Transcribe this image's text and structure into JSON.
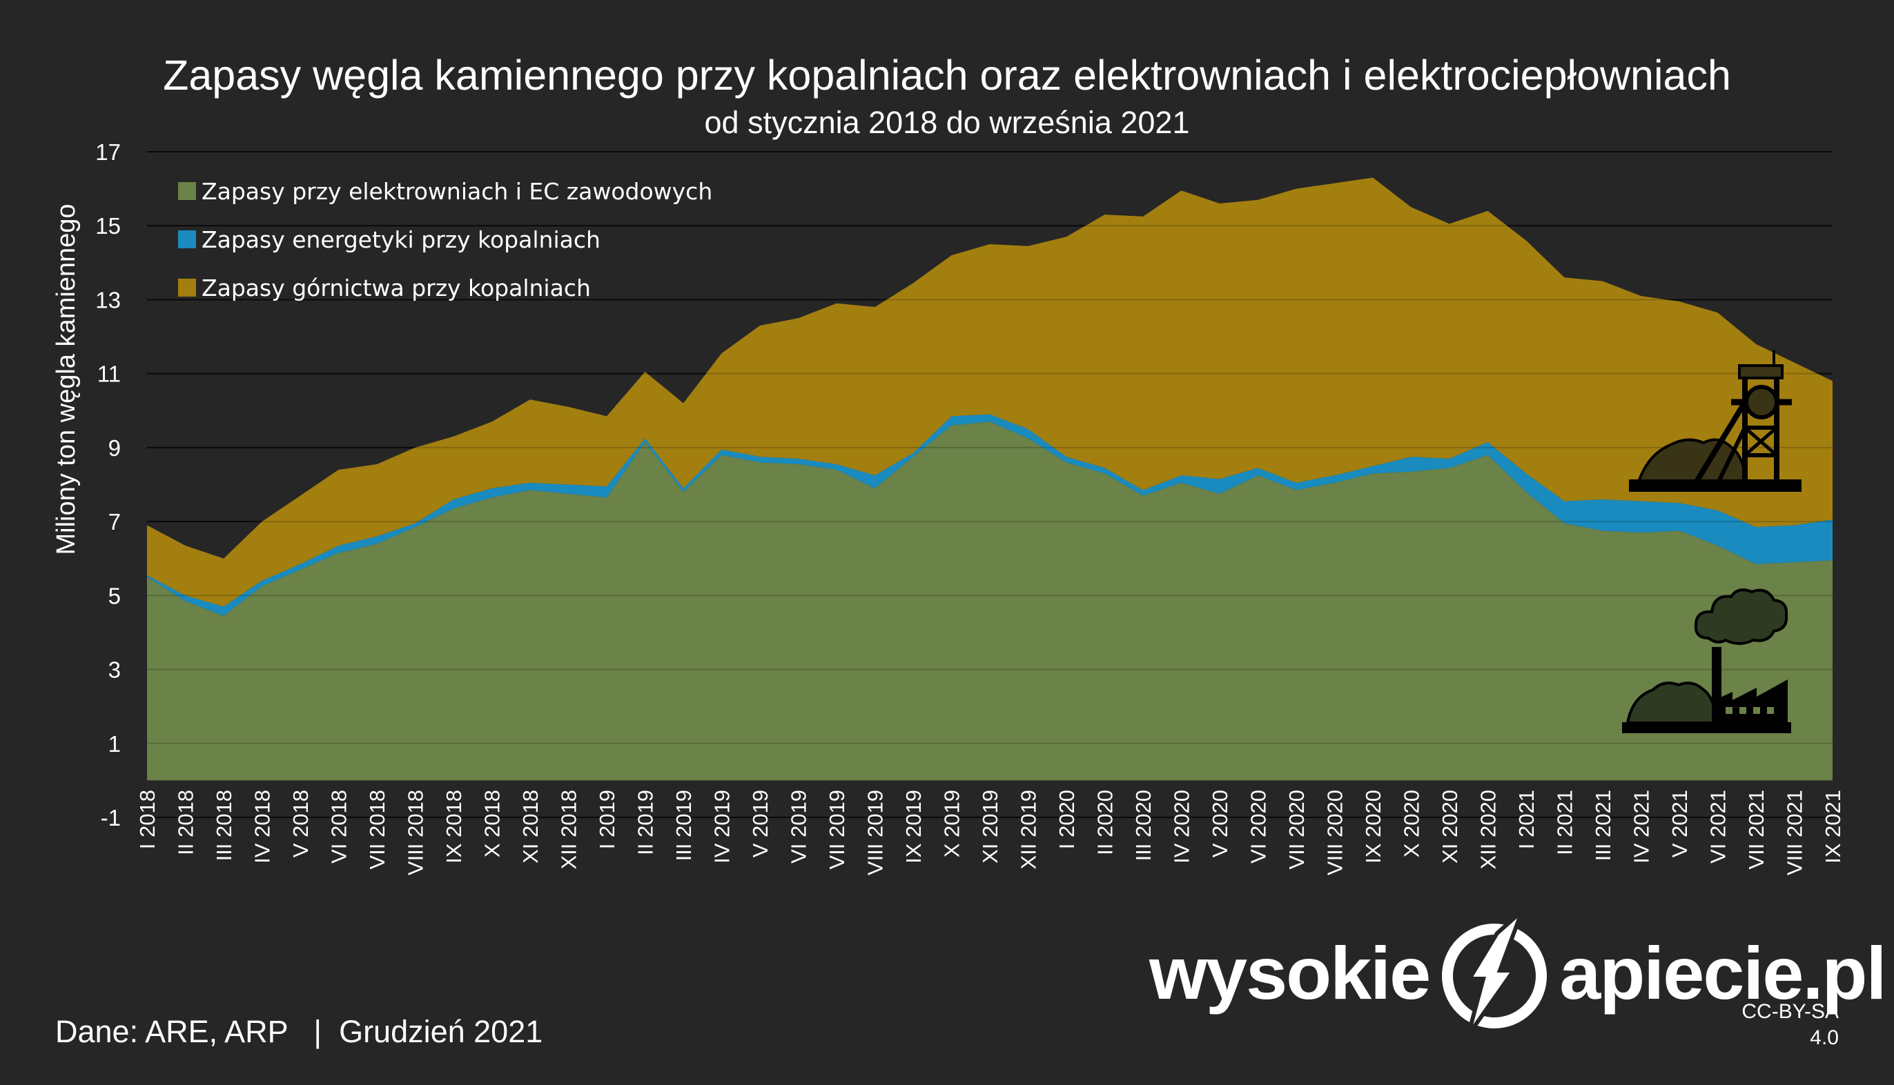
{
  "header": {
    "title": "Zapasy węgla kamiennego przy kopalniach oraz elektrowniach i elektrociepłowniach",
    "subtitle": "od stycznia 2018 do września 2021"
  },
  "footer": {
    "source": "Dane: ARE, ARP   |  Grudzień 2021",
    "brand_left": "wysokie",
    "brand_right": "apiecie.pl",
    "license_line1": "CC-BY-SA",
    "license_line2": "4.0"
  },
  "colors": {
    "background": "#262626",
    "power_plants": "#6b8248",
    "energy_mines": "#1a8bbf",
    "mining": "#a37f10",
    "gridline": "#0d0d0d",
    "text": "#ffffff"
  },
  "icons": [
    "mine-shaft-icon",
    "coal-pile-icon",
    "factory-icon",
    "smoke-cloud-icon"
  ],
  "chart_data": {
    "type": "area",
    "stacked": true,
    "ylabel": "Miliony ton węgla kamiennego",
    "xlabel": "",
    "ylim": [
      -1,
      17
    ],
    "yticks": [
      -1,
      1,
      3,
      5,
      7,
      9,
      11,
      13,
      15,
      17
    ],
    "grid": true,
    "legend_position": "top-left",
    "categories": [
      "I 2018",
      "II 2018",
      "III 2018",
      "IV 2018",
      "V 2018",
      "VI 2018",
      "VII 2018",
      "VIII 2018",
      "IX 2018",
      "X 2018",
      "XI 2018",
      "XII 2018",
      "I 2019",
      "II 2019",
      "III 2019",
      "IV 2019",
      "V 2019",
      "VI 2019",
      "VII 2019",
      "VIII 2019",
      "IX 2019",
      "X 2019",
      "XI 2019",
      "XII 2019",
      "I 2020",
      "II 2020",
      "III 2020",
      "IV 2020",
      "V 2020",
      "VI 2020",
      "VII 2020",
      "VIII 2020",
      "IX 2020",
      "X 2020",
      "XI 2020",
      "XII 2020",
      "I 2021",
      "II 2021",
      "III 2021",
      "IV 2021",
      "V 2021",
      "VI 2021",
      "VII 2021",
      "VIII 2021",
      "IX 2021"
    ],
    "series": [
      {
        "name": "Zapasy przy elektrowniach i EC zawodowych",
        "color": "#6b8248",
        "values": [
          5.5,
          4.85,
          4.45,
          5.25,
          5.7,
          6.15,
          6.4,
          6.85,
          7.35,
          7.65,
          7.85,
          7.75,
          7.65,
          9.15,
          7.8,
          8.8,
          8.6,
          8.55,
          8.4,
          7.9,
          8.75,
          9.6,
          9.7,
          9.25,
          8.6,
          8.3,
          7.7,
          8.05,
          7.75,
          8.25,
          7.85,
          8.05,
          8.3,
          8.35,
          8.45,
          8.8,
          7.8,
          6.95,
          6.75,
          6.7,
          6.75,
          6.35,
          5.85,
          5.9,
          5.95
        ]
      },
      {
        "name": "Zapasy energetyki przy kopalniach",
        "color": "#1a8bbf",
        "values": [
          0.05,
          0.15,
          0.25,
          0.15,
          0.15,
          0.2,
          0.2,
          0.1,
          0.25,
          0.25,
          0.2,
          0.25,
          0.3,
          0.1,
          0.1,
          0.15,
          0.15,
          0.15,
          0.15,
          0.35,
          0.1,
          0.25,
          0.2,
          0.25,
          0.15,
          0.15,
          0.15,
          0.2,
          0.4,
          0.2,
          0.2,
          0.2,
          0.2,
          0.4,
          0.25,
          0.35,
          0.5,
          0.6,
          0.85,
          0.85,
          0.75,
          0.95,
          1.0,
          1.0,
          1.1
        ]
      },
      {
        "name": "Zapasy górnictwa przy kopalniach",
        "color": "#a37f10",
        "values": [
          1.35,
          1.35,
          1.3,
          1.6,
          1.85,
          2.05,
          1.95,
          2.05,
          1.7,
          1.8,
          2.25,
          2.1,
          1.9,
          1.8,
          2.3,
          2.6,
          3.55,
          3.8,
          4.35,
          4.55,
          4.6,
          4.35,
          4.6,
          4.95,
          5.95,
          6.85,
          7.4,
          7.7,
          7.45,
          7.25,
          7.95,
          7.9,
          7.8,
          6.75,
          6.35,
          6.25,
          6.3,
          6.05,
          5.9,
          5.55,
          5.45,
          5.35,
          4.95,
          4.4,
          3.75
        ]
      }
    ]
  }
}
